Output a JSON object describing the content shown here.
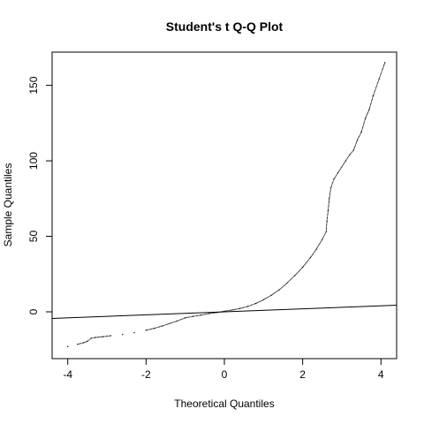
{
  "chart_data": {
    "type": "scatter",
    "title": "Student's t Q-Q Plot",
    "xlabel": "Theoretical Quantiles",
    "ylabel": "Sample Quantiles",
    "xlim": [
      -4.4,
      4.4
    ],
    "ylim": [
      -31,
      172
    ],
    "x_ticks": [
      -4,
      -2,
      0,
      2,
      4
    ],
    "y_ticks": [
      0,
      50,
      100,
      150
    ],
    "grid": false,
    "reference_line": {
      "intercept": 0,
      "slope": 1,
      "description": "y = x"
    },
    "points": [
      [
        -4.0,
        -23
      ],
      [
        -3.75,
        -21.5
      ],
      [
        -3.6,
        -20.5
      ],
      [
        -3.5,
        -19.5
      ],
      [
        -3.4,
        -17.5
      ],
      [
        -3.3,
        -17
      ],
      [
        -3.1,
        -16.5
      ],
      [
        -2.9,
        -15.8
      ],
      [
        -2.6,
        -15
      ],
      [
        -2.3,
        -13.8
      ],
      [
        -2.0,
        -12.2
      ],
      [
        -1.8,
        -11
      ],
      [
        -1.6,
        -9.5
      ],
      [
        -1.4,
        -7.8
      ],
      [
        -1.2,
        -6
      ],
      [
        -1.0,
        -4
      ],
      [
        -0.8,
        -3
      ],
      [
        -0.6,
        -2.2
      ],
      [
        -0.4,
        -1.2
      ],
      [
        -0.2,
        -0.5
      ],
      [
        0.0,
        0.4
      ],
      [
        0.2,
        1.2
      ],
      [
        0.4,
        2.2
      ],
      [
        0.6,
        3.6
      ],
      [
        0.8,
        5.5
      ],
      [
        1.0,
        8
      ],
      [
        1.2,
        11
      ],
      [
        1.4,
        14.5
      ],
      [
        1.6,
        19
      ],
      [
        1.8,
        24
      ],
      [
        2.0,
        29.5
      ],
      [
        2.2,
        36
      ],
      [
        2.35,
        41.5
      ],
      [
        2.5,
        48
      ],
      [
        2.6,
        53
      ],
      [
        2.62,
        60
      ],
      [
        2.65,
        67
      ],
      [
        2.68,
        75
      ],
      [
        2.72,
        82
      ],
      [
        2.8,
        88
      ],
      [
        2.9,
        92
      ],
      [
        3.0,
        96
      ],
      [
        3.1,
        100
      ],
      [
        3.2,
        104
      ],
      [
        3.3,
        107
      ],
      [
        3.4,
        114
      ],
      [
        3.5,
        119
      ],
      [
        3.6,
        128
      ],
      [
        3.7,
        134
      ],
      [
        3.8,
        143
      ],
      [
        3.95,
        154
      ],
      [
        4.1,
        165
      ]
    ]
  }
}
